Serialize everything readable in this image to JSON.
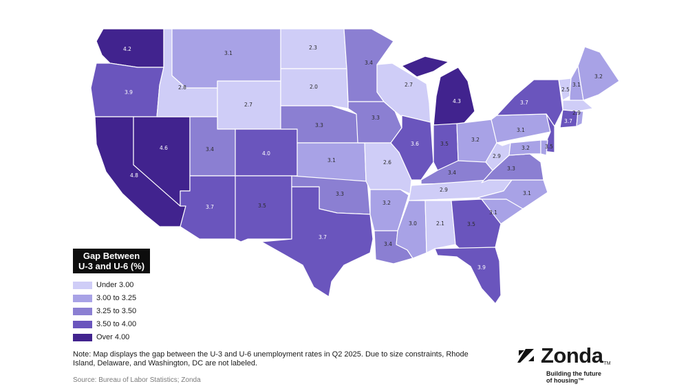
{
  "legend": {
    "title_line1": "Gap Between",
    "title_line2": "U-3 and U-6 (%)",
    "items": [
      {
        "label": "Under 3.00",
        "color": "#cfcdf7"
      },
      {
        "label": "3.00 to 3.25",
        "color": "#a8a2e6"
      },
      {
        "label": "3.25 to 3.50",
        "color": "#8b7fd2"
      },
      {
        "label": "3.50 to 4.00",
        "color": "#6a55bd"
      },
      {
        "label": "Over 4.00",
        "color": "#41238e"
      }
    ]
  },
  "note": "Note: Map displays the gap between the U-3 and U-6 unemployment rates in Q2 2025. Due to size constraints, Rhode Island, Delaware, and Washington, DC are not labeled.",
  "source": "Source: Bureau of Labor Statistics; Zonda",
  "brand": {
    "name": "Zonda",
    "tm": "TM",
    "tagline_line1": "Building the future",
    "tagline_line2": "of housing™",
    "icon": "zonda-logo-icon"
  },
  "states": [
    {
      "id": "WA",
      "value": "4.2"
    },
    {
      "id": "OR",
      "value": "3.9"
    },
    {
      "id": "CA",
      "value": "4.8"
    },
    {
      "id": "NV",
      "value": "4.6"
    },
    {
      "id": "ID",
      "value": "2.8"
    },
    {
      "id": "MT",
      "value": "3.1"
    },
    {
      "id": "WY",
      "value": "2.7"
    },
    {
      "id": "UT",
      "value": "3.4"
    },
    {
      "id": "AZ",
      "value": "3.7"
    },
    {
      "id": "CO",
      "value": "4.0"
    },
    {
      "id": "NM",
      "value": "3.5"
    },
    {
      "id": "ND",
      "value": "2.3"
    },
    {
      "id": "SD",
      "value": "2.0"
    },
    {
      "id": "NE",
      "value": "3.3"
    },
    {
      "id": "KS",
      "value": "3.1"
    },
    {
      "id": "OK",
      "value": "3.3"
    },
    {
      "id": "TX",
      "value": "3.7"
    },
    {
      "id": "MN",
      "value": "3.4"
    },
    {
      "id": "IA",
      "value": "3.3"
    },
    {
      "id": "MO",
      "value": "2.6"
    },
    {
      "id": "AR",
      "value": "3.2"
    },
    {
      "id": "LA",
      "value": "3.4"
    },
    {
      "id": "WI",
      "value": "2.7"
    },
    {
      "id": "IL",
      "value": "3.6"
    },
    {
      "id": "MI",
      "value": "4.3"
    },
    {
      "id": "IN",
      "value": "3.5"
    },
    {
      "id": "OH",
      "value": "3.2"
    },
    {
      "id": "KY",
      "value": "3.4"
    },
    {
      "id": "TN",
      "value": "2.9"
    },
    {
      "id": "MS",
      "value": "3.0"
    },
    {
      "id": "AL",
      "value": "2.1"
    },
    {
      "id": "GA",
      "value": "3.5"
    },
    {
      "id": "FL",
      "value": "3.9"
    },
    {
      "id": "SC",
      "value": "3.1"
    },
    {
      "id": "NC",
      "value": "3.1"
    },
    {
      "id": "VA",
      "value": "3.3"
    },
    {
      "id": "WV",
      "value": "2.9"
    },
    {
      "id": "PA",
      "value": "3.1"
    },
    {
      "id": "NY",
      "value": "3.7"
    },
    {
      "id": "VT",
      "value": "2.5"
    },
    {
      "id": "NH",
      "value": "3.1"
    },
    {
      "id": "ME",
      "value": "3.2"
    },
    {
      "id": "MA",
      "value": "2.9"
    },
    {
      "id": "CT",
      "value": "3.7"
    },
    {
      "id": "NJ",
      "value": "3.5"
    },
    {
      "id": "MD",
      "value": "3.2"
    },
    {
      "id": "RI",
      "value": ""
    },
    {
      "id": "DE",
      "value": ""
    }
  ]
}
